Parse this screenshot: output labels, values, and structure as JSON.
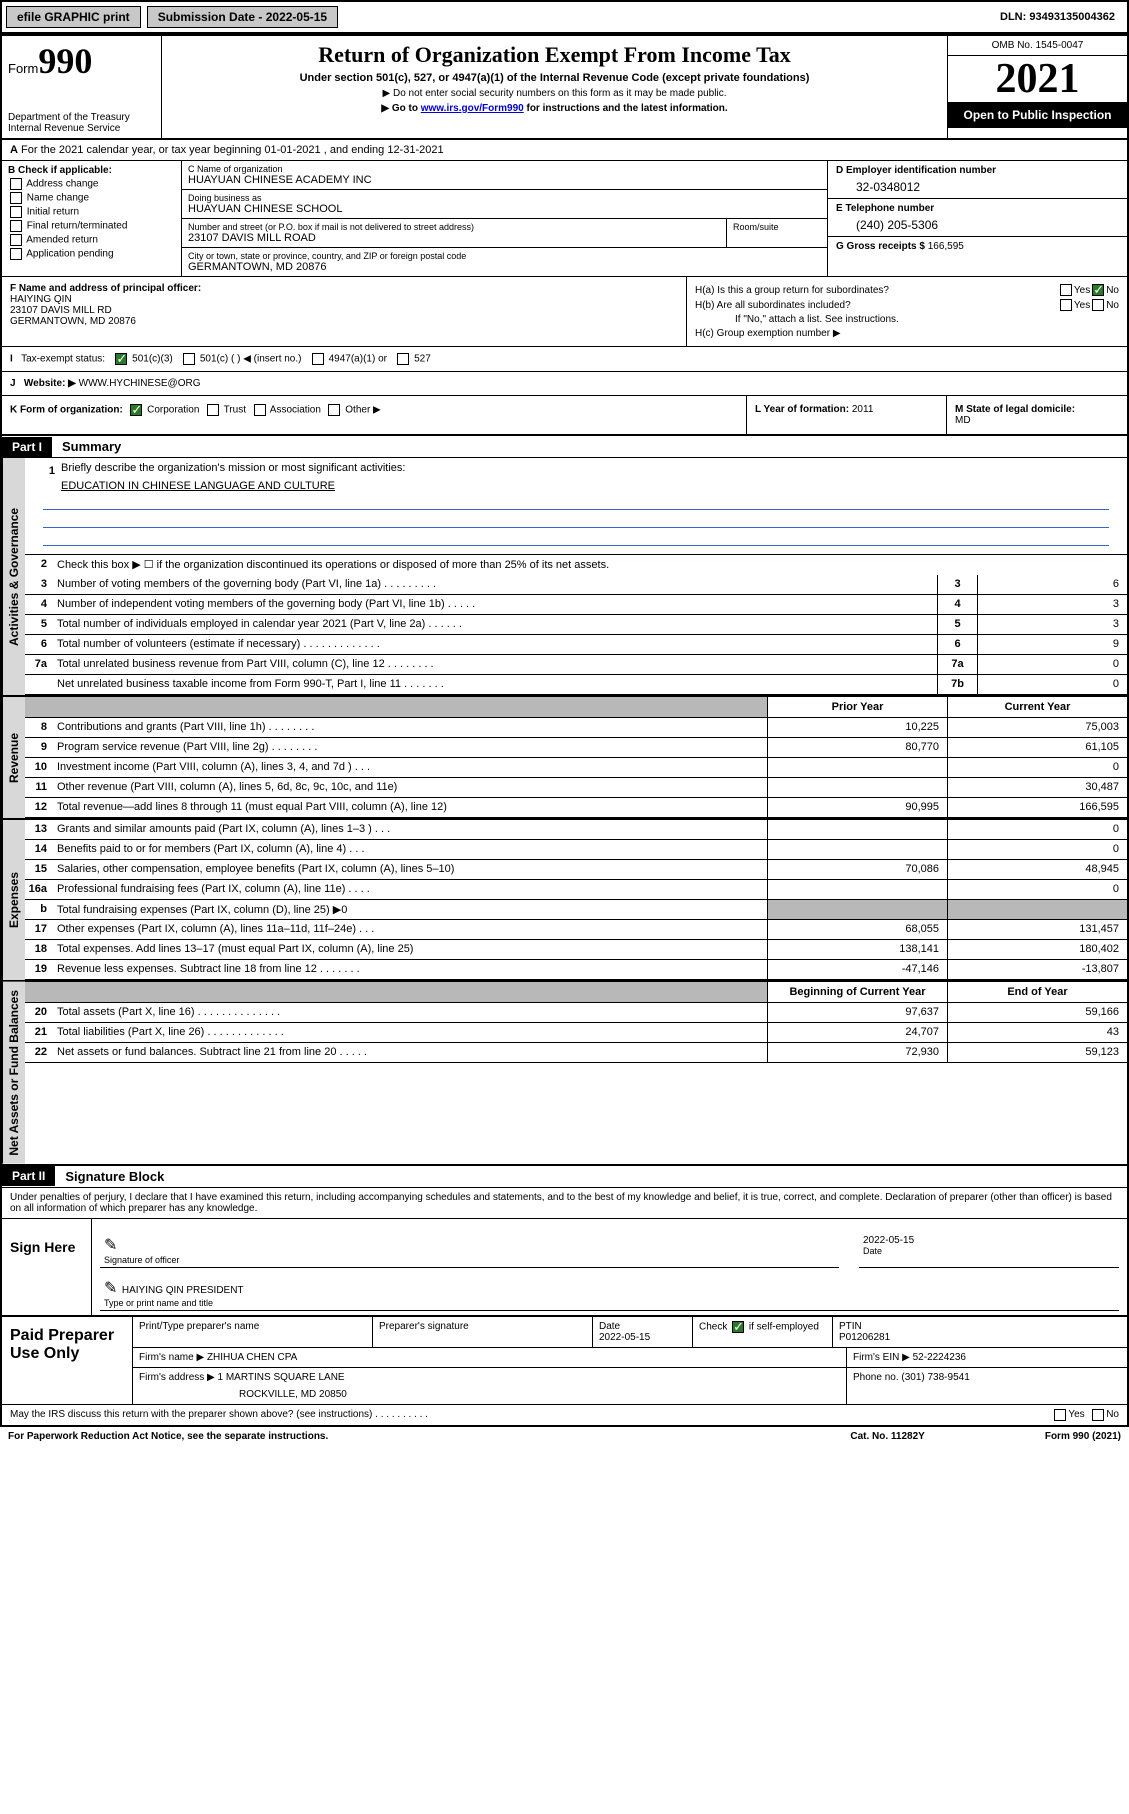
{
  "topbar": {
    "efile": "efile GRAPHIC print",
    "submission_label": "Submission Date - ",
    "submission_date": "2022-05-15",
    "dln_label": "DLN: ",
    "dln": "93493135004362"
  },
  "header": {
    "form_word": "Form",
    "form_num": "990",
    "dept": "Department of the Treasury",
    "irs": "Internal Revenue Service",
    "title": "Return of Organization Exempt From Income Tax",
    "sub": "Under section 501(c), 527, or 4947(a)(1) of the Internal Revenue Code (except private foundations)",
    "note1": "▶ Do not enter social security numbers on this form as it may be made public.",
    "note2_pre": "▶ Go to ",
    "note2_link": "www.irs.gov/Form990",
    "note2_post": " for instructions and the latest information.",
    "omb": "OMB No. 1545-0047",
    "year": "2021",
    "open": "Open to Public Inspection"
  },
  "row_a": {
    "text": "For the 2021 calendar year, or tax year beginning 01-01-2021   , and ending 12-31-2021",
    "prefix": "A"
  },
  "section_b": {
    "header": "B Check if applicable:",
    "items": [
      "Address change",
      "Name change",
      "Initial return",
      "Final return/terminated",
      "Amended return",
      "Application pending"
    ]
  },
  "section_c": {
    "name_label": "C Name of organization",
    "name": "HUAYUAN CHINESE ACADEMY INC",
    "dba_label": "Doing business as",
    "dba": "HUAYUAN CHINESE SCHOOL",
    "addr_label": "Number and street (or P.O. box if mail is not delivered to street address)",
    "addr": "23107 DAVIS MILL ROAD",
    "room_label": "Room/suite",
    "city_label": "City or town, state or province, country, and ZIP or foreign postal code",
    "city": "GERMANTOWN, MD  20876"
  },
  "section_d": {
    "label": "D Employer identification number",
    "val": "32-0348012"
  },
  "section_e": {
    "label": "E Telephone number",
    "val": "(240) 205-5306"
  },
  "section_g": {
    "label": "G Gross receipts $ ",
    "val": "166,595"
  },
  "section_f": {
    "label": "F  Name and address of principal officer:",
    "name": "HAIYING QIN",
    "addr1": "23107 DAVIS MILL RD",
    "addr2": "GERMANTOWN, MD  20876"
  },
  "section_h": {
    "ha_label": "H(a)  Is this a group return for subordinates?",
    "hb_label": "H(b)  Are all subordinates included?",
    "hb_note": "If \"No,\" attach a list. See instructions.",
    "hc_label": "H(c)  Group exemption number ▶",
    "yes": "Yes",
    "no": "No"
  },
  "section_i": {
    "label": "Tax-exempt status:",
    "prefix": "I",
    "opt1": "501(c)(3)",
    "opt2": "501(c) (   ) ◀ (insert no.)",
    "opt3": "4947(a)(1) or",
    "opt4": "527"
  },
  "section_j": {
    "label": "Website: ▶ ",
    "prefix": "J",
    "val": "WWW.HYCHINESE@ORG"
  },
  "section_k": {
    "label": "K Form of organization:",
    "opt1": "Corporation",
    "opt2": "Trust",
    "opt3": "Association",
    "opt4": "Other ▶"
  },
  "section_l": {
    "label": "L Year of formation: ",
    "val": "2011"
  },
  "section_m": {
    "label": "M State of legal domicile:",
    "val": "MD"
  },
  "part1": {
    "part": "Part I",
    "title": "Summary",
    "side_gov": "Activities & Governance",
    "side_rev": "Revenue",
    "side_exp": "Expenses",
    "side_net": "Net Assets or Fund Balances",
    "line1_label": "Briefly describe the organization's mission or most significant activities:",
    "line1_val": "EDUCATION IN CHINESE LANGUAGE AND CULTURE",
    "line2": "Check this box ▶ ☐  if the organization discontinued its operations or disposed of more than 25% of its net assets.",
    "prior_year": "Prior Year",
    "current_year": "Current Year",
    "begin_year": "Beginning of Current Year",
    "end_year": "End of Year",
    "lines_gov": [
      {
        "n": "3",
        "t": "Number of voting members of the governing body (Part VI, line 1a)  .   .   .   .   .   .   .   .   .",
        "box": "3",
        "v": "6"
      },
      {
        "n": "4",
        "t": "Number of independent voting members of the governing body (Part VI, line 1b)  .   .   .   .   .",
        "box": "4",
        "v": "3"
      },
      {
        "n": "5",
        "t": "Total number of individuals employed in calendar year 2021 (Part V, line 2a)  .   .   .   .   .   .",
        "box": "5",
        "v": "3"
      },
      {
        "n": "6",
        "t": "Total number of volunteers (estimate if necessary)  .   .   .   .   .   .   .   .   .   .   .   .   .",
        "box": "6",
        "v": "9"
      },
      {
        "n": "7a",
        "t": "Total unrelated business revenue from Part VIII, column (C), line 12  .   .   .   .   .   .   .   .",
        "box": "7a",
        "v": "0"
      },
      {
        "n": "",
        "t": "Net unrelated business taxable income from Form 990-T, Part I, line 11  .   .   .   .   .   .   .",
        "box": "7b",
        "v": "0"
      }
    ],
    "lines_rev": [
      {
        "n": "8",
        "t": "Contributions and grants (Part VIII, line 1h)   .   .   .   .   .   .   .   .",
        "py": "10,225",
        "cy": "75,003"
      },
      {
        "n": "9",
        "t": "Program service revenue (Part VIII, line 2g)   .   .   .   .   .   .   .   .",
        "py": "80,770",
        "cy": "61,105"
      },
      {
        "n": "10",
        "t": "Investment income (Part VIII, column (A), lines 3, 4, and 7d )   .   .   .",
        "py": "",
        "cy": "0"
      },
      {
        "n": "11",
        "t": "Other revenue (Part VIII, column (A), lines 5, 6d, 8c, 9c, 10c, and 11e)",
        "py": "",
        "cy": "30,487"
      },
      {
        "n": "12",
        "t": "Total revenue—add lines 8 through 11 (must equal Part VIII, column (A), line 12)",
        "py": "90,995",
        "cy": "166,595"
      }
    ],
    "lines_exp": [
      {
        "n": "13",
        "t": "Grants and similar amounts paid (Part IX, column (A), lines 1–3 )   .   .   .",
        "py": "",
        "cy": "0"
      },
      {
        "n": "14",
        "t": "Benefits paid to or for members (Part IX, column (A), line 4)   .   .   .",
        "py": "",
        "cy": "0"
      },
      {
        "n": "15",
        "t": "Salaries, other compensation, employee benefits (Part IX, column (A), lines 5–10)",
        "py": "70,086",
        "cy": "48,945"
      },
      {
        "n": "16a",
        "t": "Professional fundraising fees (Part IX, column (A), line 11e)   .   .   .   .",
        "py": "",
        "cy": "0"
      },
      {
        "n": "b",
        "t": "Total fundraising expenses (Part IX, column (D), line 25) ▶0",
        "py": "gray",
        "cy": "gray"
      },
      {
        "n": "17",
        "t": "Other expenses (Part IX, column (A), lines 11a–11d, 11f–24e)   .   .   .",
        "py": "68,055",
        "cy": "131,457"
      },
      {
        "n": "18",
        "t": "Total expenses. Add lines 13–17 (must equal Part IX, column (A), line 25)",
        "py": "138,141",
        "cy": "180,402"
      },
      {
        "n": "19",
        "t": "Revenue less expenses. Subtract line 18 from line 12  .   .   .   .   .   .   .",
        "py": "-47,146",
        "cy": "-13,807"
      }
    ],
    "lines_net": [
      {
        "n": "20",
        "t": "Total assets (Part X, line 16)  .   .   .   .   .   .   .   .   .   .   .   .   .   .",
        "py": "97,637",
        "cy": "59,166"
      },
      {
        "n": "21",
        "t": "Total liabilities (Part X, line 26)  .   .   .   .   .   .   .   .   .   .   .   .   .",
        "py": "24,707",
        "cy": "43"
      },
      {
        "n": "22",
        "t": "Net assets or fund balances. Subtract line 21 from line 20  .   .   .   .   .",
        "py": "72,930",
        "cy": "59,123"
      }
    ]
  },
  "part2": {
    "part": "Part II",
    "title": "Signature Block",
    "declaration": "Under penalties of perjury, I declare that I have examined this return, including accompanying schedules and statements, and to the best of my knowledge and belief, it is true, correct, and complete. Declaration of preparer (other than officer) is based on all information of which preparer has any knowledge.",
    "sign_here": "Sign Here",
    "sig_officer": "Signature of officer",
    "date": "Date",
    "sig_date": "2022-05-15",
    "officer_name": "HAIYING QIN PRESIDENT",
    "type_name": "Type or print name and title",
    "paid_prep": "Paid Preparer Use Only",
    "prep_name_label": "Print/Type preparer's name",
    "prep_sig_label": "Preparer's signature",
    "prep_date_label": "Date",
    "prep_date": "2022-05-15",
    "check_if": "Check ",
    "self_emp": " if self-employed",
    "ptin_label": "PTIN",
    "ptin": "P01206281",
    "firm_name_label": "Firm's name    ▶ ",
    "firm_name": "ZHIHUA CHEN CPA",
    "firm_ein_label": "Firm's EIN ▶ ",
    "firm_ein": "52-2224236",
    "firm_addr_label": "Firm's address ▶ ",
    "firm_addr1": "1 MARTINS SQUARE LANE",
    "firm_addr2": "ROCKVILLE, MD  20850",
    "phone_label": "Phone no. ",
    "phone": "(301) 738-9541",
    "may_irs": "May the IRS discuss this return with the preparer shown above? (see instructions)   .   .   .   .   .   .   .   .   .   .",
    "yes": "Yes",
    "no": "No"
  },
  "footer": {
    "paperwork": "For Paperwork Reduction Act Notice, see the separate instructions.",
    "cat": "Cat. No. 11282Y",
    "form": "Form 990 (2021)"
  }
}
